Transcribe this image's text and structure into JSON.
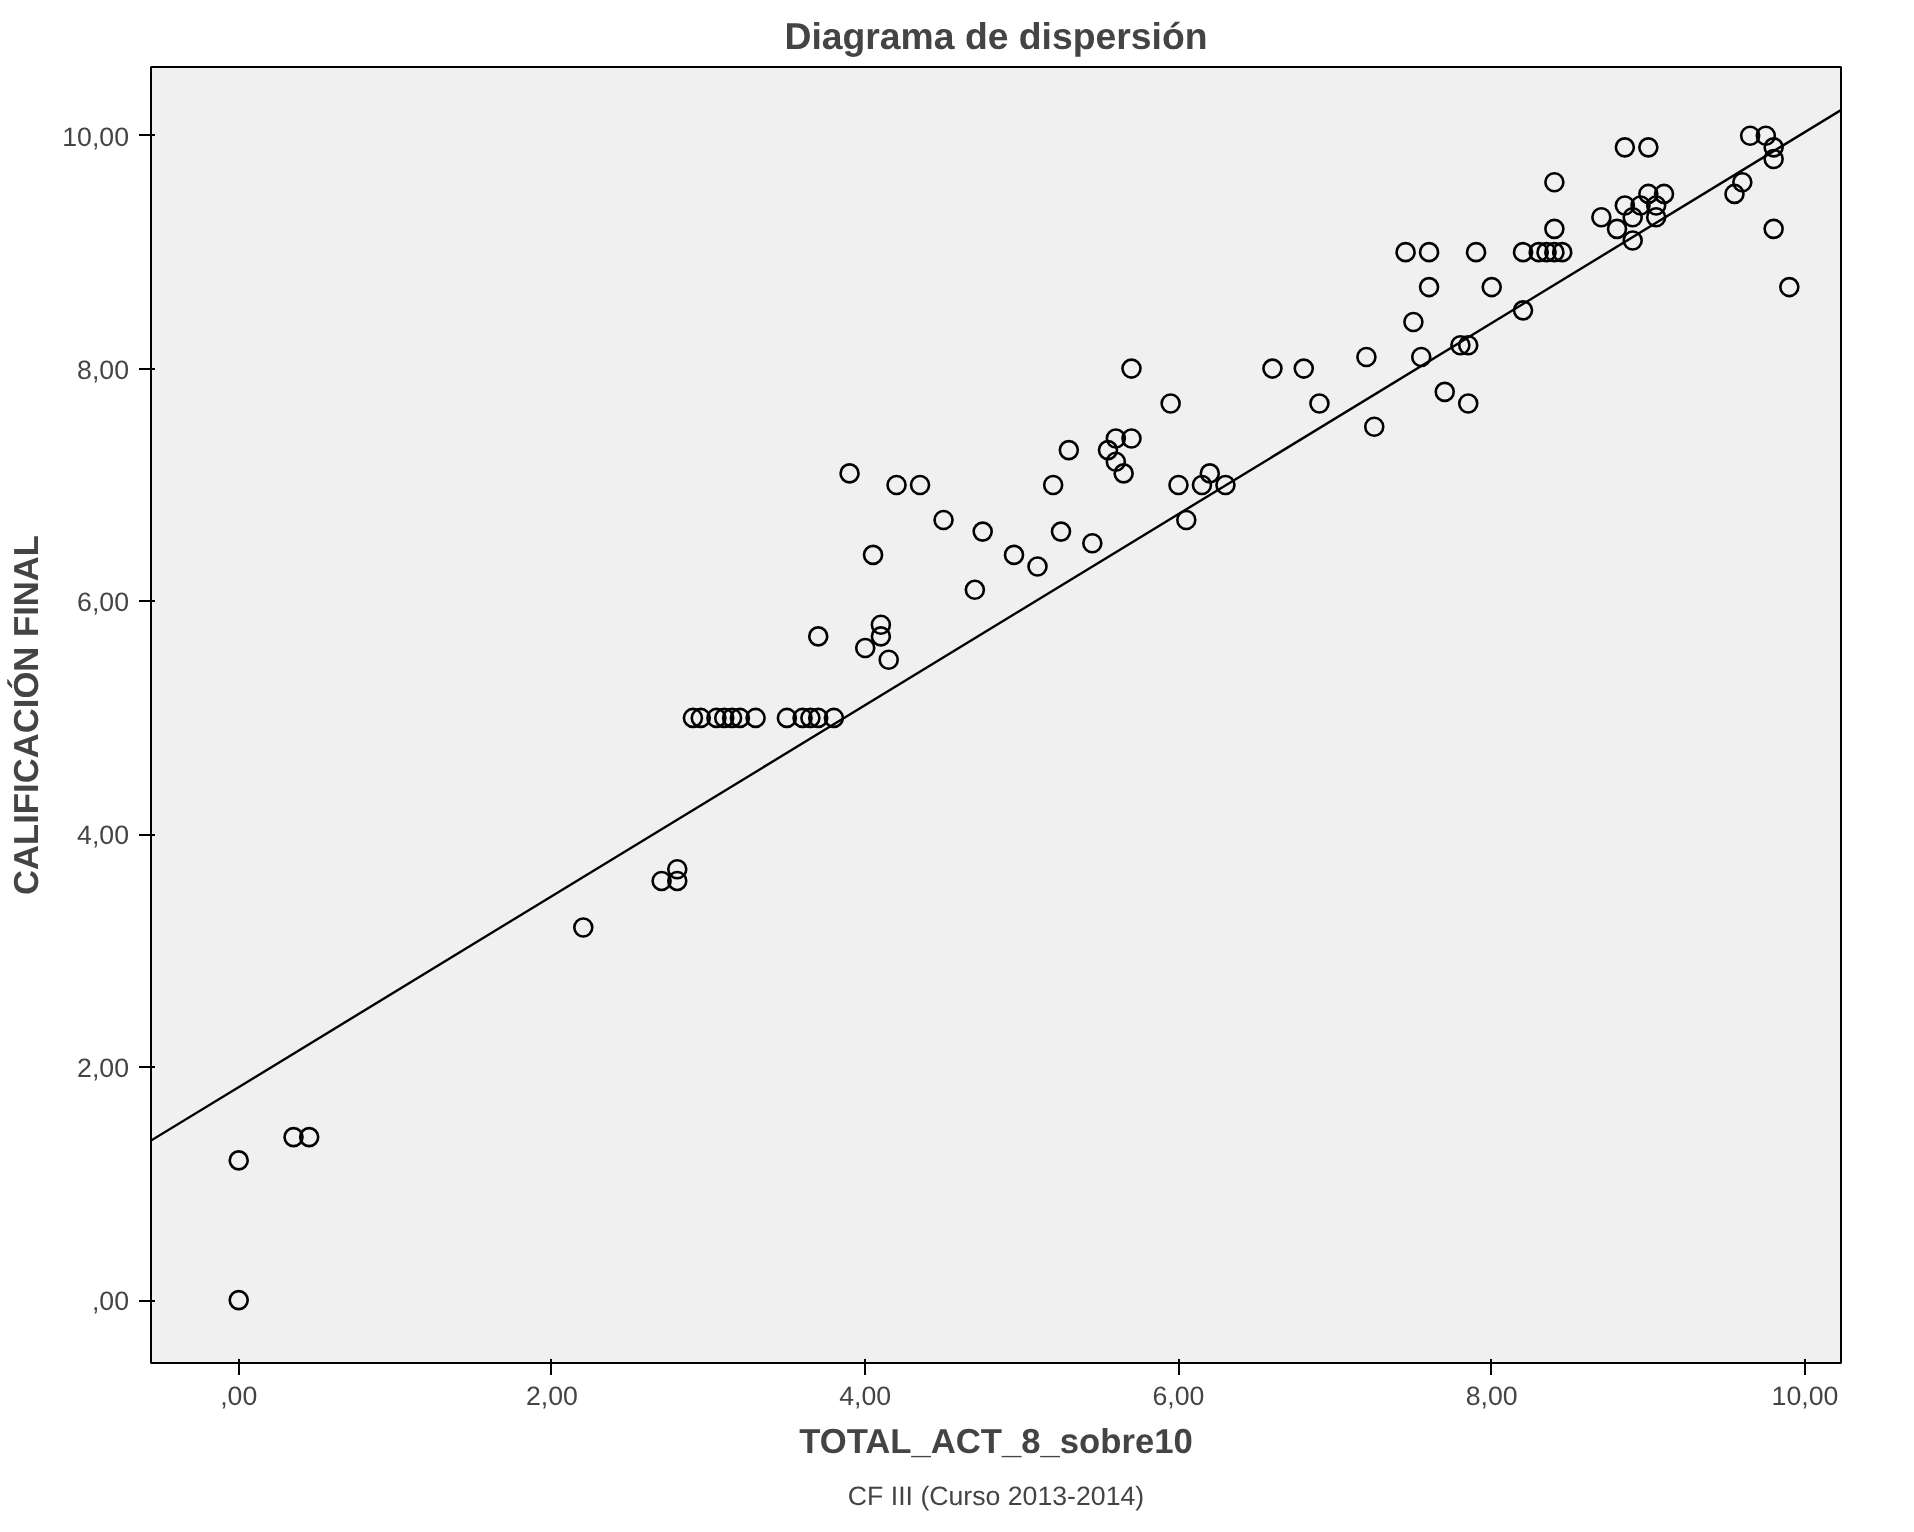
{
  "chart_data": {
    "type": "scatter",
    "title": "Diagrama de dispersión",
    "xlabel": "TOTAL_ACT_8_sobre10",
    "ylabel": "CALIFICACIÓN FINAL",
    "annotations": [
      "CF III (Curso 2013-2014)"
    ],
    "xlim": [
      -0.56,
      10.23
    ],
    "ylim": [
      -0.54,
      10.59
    ],
    "xticks": [
      {
        "value": 0,
        "label": ",00"
      },
      {
        "value": 2,
        "label": "2,00"
      },
      {
        "value": 4,
        "label": "4,00"
      },
      {
        "value": 6,
        "label": "6,00"
      },
      {
        "value": 8,
        "label": "8,00"
      },
      {
        "value": 10,
        "label": "10,00"
      }
    ],
    "yticks": [
      {
        "value": 0,
        "label": ",00"
      },
      {
        "value": 2,
        "label": "2,00"
      },
      {
        "value": 4,
        "label": "4,00"
      },
      {
        "value": 6,
        "label": "6,00"
      },
      {
        "value": 8,
        "label": "8,00"
      },
      {
        "value": 10,
        "label": "10,00"
      }
    ],
    "grid": false,
    "series": [
      {
        "color": "#000000",
        "marker": "circle",
        "x": [
          0,
          0,
          0.35,
          0.45,
          2.2,
          2.7,
          2.8,
          2.8,
          2.9,
          2.95,
          3.05,
          3.1,
          3.15,
          3.2,
          3.3,
          3.5,
          3.6,
          3.65,
          3.7,
          3.8,
          3.7,
          3.9,
          4.0,
          4.05,
          4.1,
          4.1,
          4.15,
          4.2,
          4.35,
          4.5,
          4.7,
          4.75,
          4.95,
          5.1,
          5.2,
          5.25,
          5.3,
          5.45,
          5.55,
          5.6,
          5.6,
          5.65,
          5.7,
          5.7,
          5.95,
          6.0,
          6.05,
          6.15,
          6.2,
          6.3,
          6.6,
          6.8,
          6.9,
          7.2,
          7.25,
          7.45,
          7.5,
          7.55,
          7.6,
          7.6,
          7.7,
          7.8,
          7.85,
          7.85,
          7.9,
          8.0,
          8.2,
          8.2,
          8.3,
          8.35,
          8.4,
          8.4,
          8.4,
          8.45,
          8.7,
          8.8,
          8.85,
          8.85,
          8.9,
          8.9,
          8.95,
          9.0,
          9.0,
          9.05,
          9.05,
          9.1,
          9.55,
          9.6,
          9.65,
          9.75,
          9.8,
          9.8,
          9.8,
          9.9
        ],
        "values": [
          0,
          1.2,
          1.4,
          1.4,
          3.2,
          3.6,
          3.7,
          3.6,
          5,
          5,
          5,
          5,
          5,
          5,
          5,
          5,
          5,
          5,
          5,
          5,
          5.7,
          7.1,
          5.6,
          6.4,
          5.7,
          5.8,
          5.5,
          7,
          7,
          6.7,
          6.1,
          6.6,
          6.4,
          6.3,
          7,
          6.6,
          7.3,
          6.5,
          7.3,
          7.2,
          7.4,
          7.1,
          7.4,
          8,
          7.7,
          7,
          6.7,
          7,
          7.1,
          7,
          8,
          8,
          7.7,
          8.1,
          7.5,
          9,
          8.4,
          8.1,
          9,
          8.7,
          7.8,
          8.2,
          7.7,
          8.2,
          9,
          8.7,
          8.5,
          9,
          9,
          9,
          9,
          9.6,
          9.2,
          9,
          9.3,
          9.2,
          9.9,
          9.4,
          9.1,
          9.3,
          9.4,
          9.5,
          9.9,
          9.4,
          9.3,
          9.5,
          9.5,
          9.6,
          10,
          10,
          9.9,
          9.8,
          9.2,
          8.7
        ]
      },
      {
        "type": "line",
        "color": "#000000",
        "marker": "none",
        "line_style": "solid",
        "x": [
          -0.56,
          10.23
        ],
        "values": [
          1.37,
          10.22
        ]
      }
    ]
  }
}
